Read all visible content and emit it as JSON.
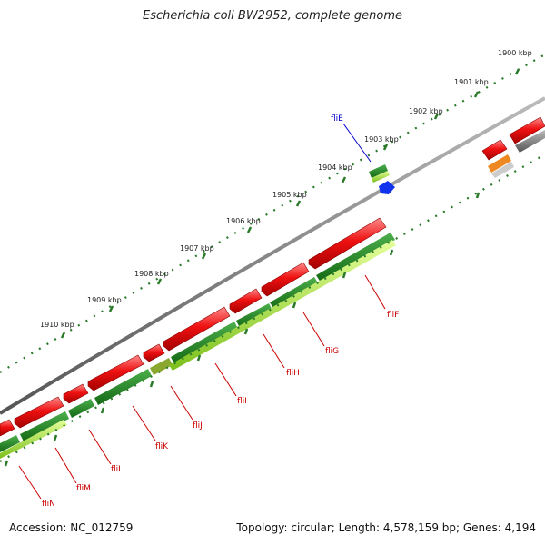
{
  "title": "Escherichia coli BW2952, complete genome",
  "footer": {
    "accession": "Accession: NC_012759",
    "topology": "Topology: circular; Length: 4,578,159 bp; Genes: 4,194"
  },
  "colors": {
    "forward_cds": "#e8141c",
    "reverse_cds": "#1e8a1e",
    "light_green": "#a6e22e",
    "backbone": "#8a8a8a",
    "ticks": "#2a7a2a",
    "label_red": "#cc0000",
    "label_blue": "#0000cc",
    "blue_feature": "#1133ee",
    "orange_feature": "#ee8822"
  },
  "tick_labels": [
    "1900 kbp",
    "1901 kbp",
    "1902 kbp",
    "1903 kbp",
    "1904 kbp",
    "1905 kbp",
    "1906 kbp",
    "1907 kbp",
    "1908 kbp",
    "1909 kbp",
    "1910 kbp"
  ],
  "genes": [
    {
      "name": "fliE",
      "color": "blue"
    },
    {
      "name": "fliF",
      "color": "red"
    },
    {
      "name": "fliG",
      "color": "red"
    },
    {
      "name": "fliH",
      "color": "red"
    },
    {
      "name": "fliI",
      "color": "red"
    },
    {
      "name": "fliJ",
      "color": "red"
    },
    {
      "name": "fliK",
      "color": "red"
    },
    {
      "name": "fliL",
      "color": "red"
    },
    {
      "name": "fliM",
      "color": "red"
    },
    {
      "name": "fliN",
      "color": "red"
    }
  ]
}
